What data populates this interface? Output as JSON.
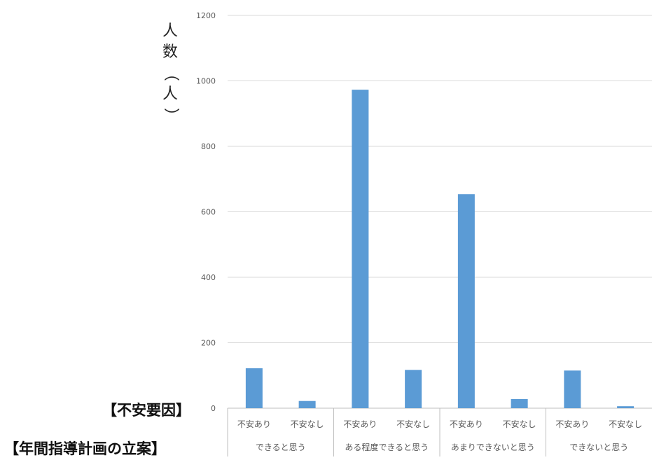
{
  "chart_data": {
    "type": "bar",
    "ylabel_chars": [
      "人",
      "数",
      "（",
      "人",
      "）"
    ],
    "ylim": [
      0,
      1200
    ],
    "yticks": [
      0,
      200,
      400,
      600,
      800,
      1000,
      1200
    ],
    "grid": true,
    "bar_color": "#5b9bd5",
    "groups": [
      {
        "label": "できると思う",
        "categories": [
          "不安あり",
          "不安なし"
        ],
        "values": [
          122,
          22
        ]
      },
      {
        "label": "ある程度できると思う",
        "categories": [
          "不安あり",
          "不安なし"
        ],
        "values": [
          973,
          117
        ]
      },
      {
        "label": "あまりできないと思う",
        "categories": [
          "不安あり",
          "不安なし"
        ],
        "values": [
          654,
          28
        ]
      },
      {
        "label": "できないと思う",
        "categories": [
          "不安あり",
          "不安なし"
        ],
        "values": [
          115,
          6
        ]
      }
    ]
  },
  "row_titles": {
    "factor": "【不安要因】",
    "plan": "【年間指導計画の立案】"
  }
}
